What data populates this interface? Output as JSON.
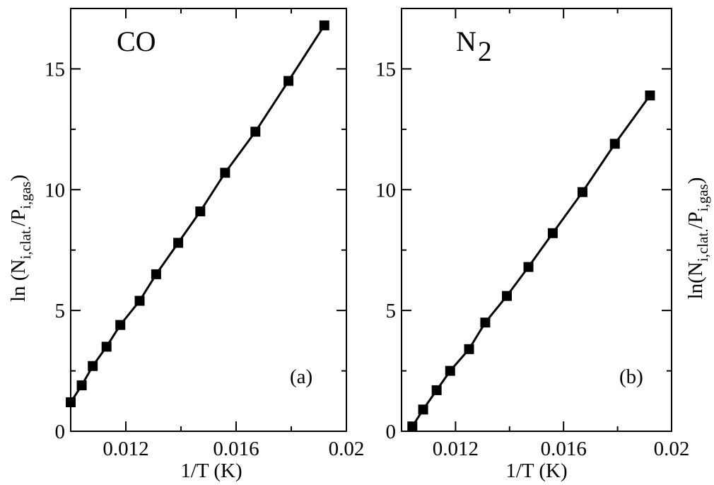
{
  "chart_data": [
    {
      "type": "line",
      "title": "CO",
      "title_subscript": "",
      "panel_label": "(a)",
      "xlabel": "1/T (K)",
      "ylabel": "ln (N",
      "ylabel_sub1": "i,clat.",
      "ylabel_mid": "/P",
      "ylabel_sub2": "i,gas",
      "ylabel_end": ")",
      "xlim": [
        0.01,
        0.02
      ],
      "ylim": [
        0,
        17.5
      ],
      "xticks": [
        0.012,
        0.016,
        0.02
      ],
      "xtick_labels": [
        "0.012",
        "0.016",
        "0.02"
      ],
      "yticks": [
        0,
        5,
        10,
        15
      ],
      "ytick_labels": [
        "0",
        "5",
        "10",
        "15"
      ],
      "series": [
        {
          "marker": "square",
          "color": "#000000",
          "x": [
            0.01,
            0.0104,
            0.0108,
            0.0113,
            0.0118,
            0.0125,
            0.0131,
            0.0139,
            0.0147,
            0.0156,
            0.0167,
            0.0179,
            0.0192
          ],
          "y": [
            1.2,
            1.9,
            2.7,
            3.5,
            4.4,
            5.4,
            6.5,
            7.8,
            9.1,
            10.7,
            12.4,
            14.5,
            16.8
          ]
        }
      ]
    },
    {
      "type": "line",
      "title": "N",
      "title_subscript": "2",
      "panel_label": "(b)",
      "xlabel": "1/T (K)",
      "ylabel": "ln(N",
      "ylabel_sub1": "i,clat.",
      "ylabel_mid": "/P",
      "ylabel_sub2": "i,gas",
      "ylabel_end": ")",
      "xlim": [
        0.01,
        0.02
      ],
      "ylim": [
        0,
        17.5
      ],
      "xticks": [
        0.012,
        0.016,
        0.02
      ],
      "xtick_labels": [
        "0.012",
        "0.016",
        "0.02"
      ],
      "yticks": [
        0,
        5,
        10,
        15
      ],
      "ytick_labels": [
        "0",
        "5",
        "10",
        "15"
      ],
      "series": [
        {
          "marker": "square",
          "color": "#000000",
          "x": [
            0.0104,
            0.0108,
            0.0113,
            0.0118,
            0.0125,
            0.0131,
            0.0139,
            0.0147,
            0.0156,
            0.0167,
            0.0179,
            0.0192
          ],
          "y": [
            0.2,
            0.9,
            1.7,
            2.5,
            3.4,
            4.5,
            5.6,
            6.8,
            8.2,
            9.9,
            11.9,
            13.9
          ]
        }
      ]
    }
  ]
}
